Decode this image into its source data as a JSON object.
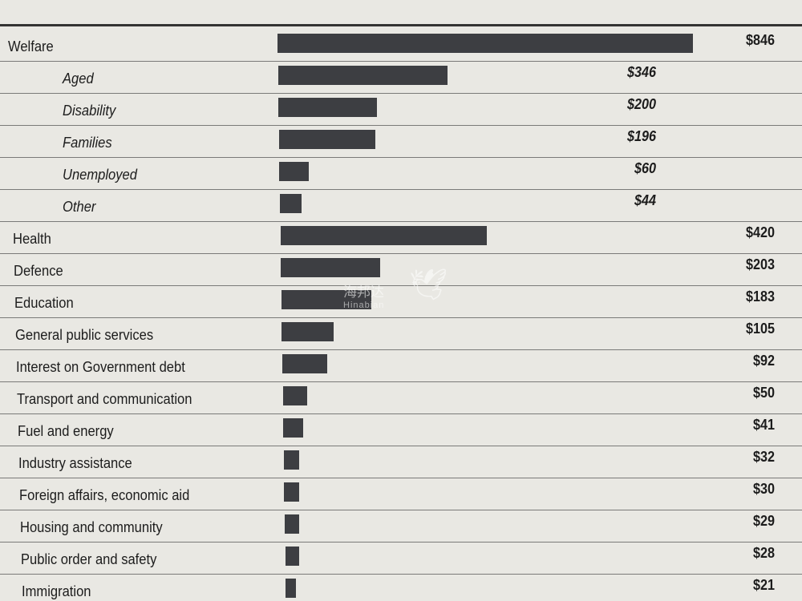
{
  "chart_data": {
    "type": "bar",
    "orientation": "horizontal",
    "title": "",
    "xlabel": "",
    "ylabel": "",
    "xlim": [
      0,
      846
    ],
    "grid": false,
    "rows": [
      {
        "label": "Welfare",
        "value": 846,
        "value_label": "$846",
        "level": 0
      },
      {
        "label": "Aged",
        "value": 346,
        "value_label": "$346",
        "level": 1
      },
      {
        "label": "Disability",
        "value": 200,
        "value_label": "$200",
        "level": 1
      },
      {
        "label": "Families",
        "value": 196,
        "value_label": "$196",
        "level": 1
      },
      {
        "label": "Unemployed",
        "value": 60,
        "value_label": "$60",
        "level": 1
      },
      {
        "label": "Other",
        "value": 44,
        "value_label": "$44",
        "level": 1
      },
      {
        "label": "Health",
        "value": 420,
        "value_label": "$420",
        "level": 0
      },
      {
        "label": "Defence",
        "value": 203,
        "value_label": "$203",
        "level": 0
      },
      {
        "label": "Education",
        "value": 183,
        "value_label": "$183",
        "level": 0
      },
      {
        "label": "General public services",
        "value": 105,
        "value_label": "$105",
        "level": 0
      },
      {
        "label": "Interest on Government debt",
        "value": 92,
        "value_label": "$92",
        "level": 0
      },
      {
        "label": "Transport and communication",
        "value": 50,
        "value_label": "$50",
        "level": 0
      },
      {
        "label": "Fuel and energy",
        "value": 41,
        "value_label": "$41",
        "level": 0
      },
      {
        "label": "Industry assistance",
        "value": 32,
        "value_label": "$32",
        "level": 0
      },
      {
        "label": "Foreign affairs, economic aid",
        "value": 30,
        "value_label": "$30",
        "level": 0
      },
      {
        "label": "Housing and community",
        "value": 29,
        "value_label": "$29",
        "level": 0
      },
      {
        "label": "Public order and safety",
        "value": 28,
        "value_label": "$28",
        "level": 0
      },
      {
        "label": "Immigration",
        "value": 21,
        "value_label": "$21",
        "level": 0
      }
    ],
    "colors": {
      "bar": "#3d3e42",
      "background": "#e9e8e3",
      "rule": "#7a7a78"
    }
  },
  "watermark": {
    "text": "海邦达",
    "subtext": "Hinabian"
  }
}
